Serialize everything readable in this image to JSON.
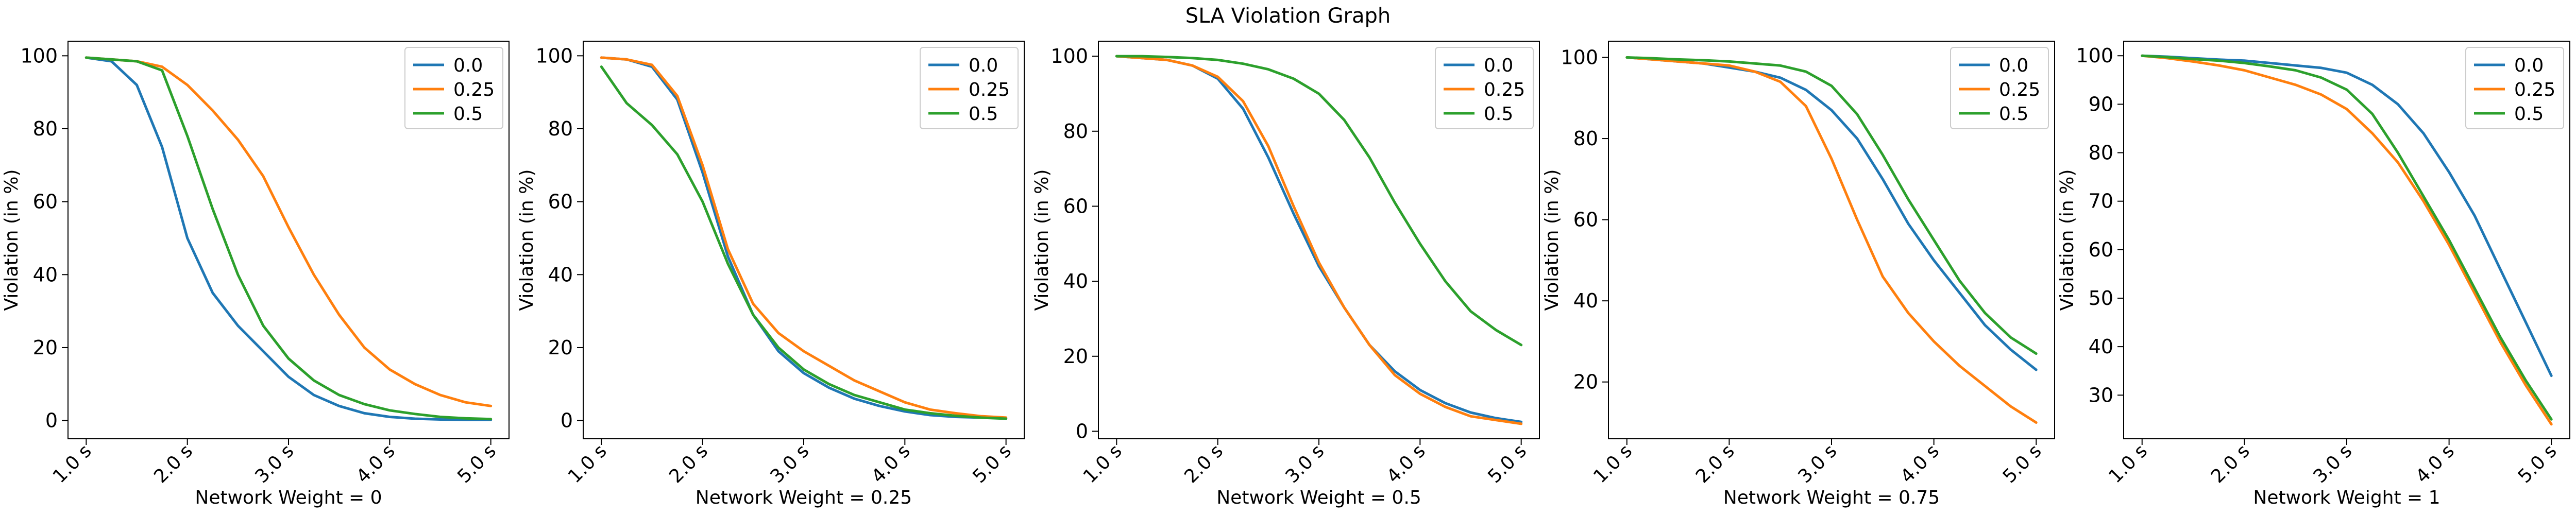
{
  "figure": {
    "title": "SLA Violation Graph"
  },
  "colors": {
    "0.0": "#1f77b4",
    "0.25": "#ff7f0e",
    "0.5": "#2ca02c"
  },
  "chart_data": [
    {
      "type": "line",
      "title": "",
      "xlabel": "Network Weight = 0",
      "ylabel": "Violation (in %)",
      "x": [
        1.0,
        1.25,
        1.5,
        1.75,
        2.0,
        2.25,
        2.5,
        2.75,
        3.0,
        3.25,
        3.5,
        3.75,
        4.0,
        4.25,
        4.5,
        4.75,
        5.0
      ],
      "xticks": [
        "1.0 s",
        "2.0 s",
        "3.0 s",
        "4.0 s",
        "5.0 s"
      ],
      "ylim": [
        -5,
        104
      ],
      "yticks": [
        0,
        20,
        40,
        60,
        80,
        100
      ],
      "legend": "top-right",
      "grid": false,
      "series": [
        {
          "name": "0.0",
          "values": [
            99.5,
            98.5,
            92,
            75,
            50,
            35,
            26,
            19,
            12,
            7,
            4,
            2,
            1,
            0.5,
            0.3,
            0.2,
            0.2
          ]
        },
        {
          "name": "0.25",
          "values": [
            99.5,
            99,
            98.5,
            97,
            92,
            85,
            77,
            67,
            53,
            40,
            29,
            20,
            14,
            10,
            7,
            5,
            4
          ]
        },
        {
          "name": "0.5",
          "values": [
            99.5,
            99,
            98.5,
            96,
            78,
            58,
            40,
            26,
            17,
            11,
            7,
            4.5,
            2.8,
            1.8,
            1.0,
            0.6,
            0.4
          ]
        }
      ]
    },
    {
      "type": "line",
      "title": "",
      "xlabel": "Network Weight = 0.25",
      "ylabel": "Violation (in %)",
      "x": [
        1.0,
        1.25,
        1.5,
        1.75,
        2.0,
        2.25,
        2.5,
        2.75,
        3.0,
        3.25,
        3.5,
        3.75,
        4.0,
        4.25,
        4.5,
        4.75,
        5.0
      ],
      "xticks": [
        "1.0 s",
        "2.0 s",
        "3.0 s",
        "4.0 s",
        "5.0 s"
      ],
      "ylim": [
        -5,
        104
      ],
      "yticks": [
        0,
        20,
        40,
        60,
        80,
        100
      ],
      "legend": "top-right",
      "grid": false,
      "series": [
        {
          "name": "0.0",
          "values": [
            99.5,
            99,
            97,
            88,
            68,
            45,
            29,
            19,
            13,
            9,
            6,
            4,
            2.5,
            1.5,
            1.0,
            0.8,
            0.6
          ]
        },
        {
          "name": "0.25",
          "values": [
            99.5,
            99,
            97.5,
            89,
            70,
            47,
            32,
            24,
            19,
            15,
            11,
            8,
            5,
            3,
            2,
            1.2,
            0.8
          ]
        },
        {
          "name": "0.5",
          "values": [
            97,
            87,
            81,
            73,
            60,
            43,
            29,
            20,
            14,
            10,
            7,
            5,
            3,
            2,
            1.3,
            0.8,
            0.5
          ]
        }
      ]
    },
    {
      "type": "line",
      "title": "",
      "xlabel": "Network Weight = 0.5",
      "ylabel": "Violation (in %)",
      "x": [
        1.0,
        1.25,
        1.5,
        1.75,
        2.0,
        2.25,
        2.5,
        2.75,
        3.0,
        3.25,
        3.5,
        3.75,
        4.0,
        4.25,
        4.5,
        4.75,
        5.0
      ],
      "xticks": [
        "1.0 s",
        "2.0 s",
        "3.0 s",
        "4.0 s",
        "5.0 s"
      ],
      "ylim": [
        -2,
        104
      ],
      "yticks": [
        0,
        20,
        40,
        60,
        80,
        100
      ],
      "legend": "top-right",
      "grid": false,
      "series": [
        {
          "name": "0.0",
          "values": [
            100,
            99.5,
            99,
            97.5,
            94,
            86,
            73,
            58,
            44,
            33,
            23,
            16,
            11,
            7.5,
            5,
            3.5,
            2.5
          ]
        },
        {
          "name": "0.25",
          "values": [
            100,
            99.5,
            99,
            97.5,
            94.5,
            88,
            76,
            60,
            45,
            33,
            23,
            15,
            10,
            6.5,
            4,
            3,
            2
          ]
        },
        {
          "name": "0.5",
          "values": [
            100,
            100,
            99.8,
            99.5,
            99,
            98,
            96.5,
            94,
            90,
            83,
            73,
            61,
            50,
            40,
            32,
            27,
            23
          ]
        }
      ]
    },
    {
      "type": "line",
      "title": "",
      "xlabel": "Network Weight = 0.75",
      "ylabel": "Violation (in %)",
      "x": [
        1.0,
        1.25,
        1.5,
        1.75,
        2.0,
        2.25,
        2.5,
        2.75,
        3.0,
        3.25,
        3.5,
        3.75,
        4.0,
        4.25,
        4.5,
        4.75,
        5.0
      ],
      "xticks": [
        "1.0 s",
        "2.0 s",
        "3.0 s",
        "4.0 s",
        "5.0 s"
      ],
      "ylim": [
        6,
        104
      ],
      "yticks": [
        20,
        40,
        60,
        80,
        100
      ],
      "legend": "top-right",
      "grid": false,
      "series": [
        {
          "name": "0.0",
          "values": [
            100,
            99.5,
            99,
            98.5,
            97.5,
            96.5,
            95,
            92,
            87,
            80,
            70,
            59,
            50,
            42,
            34,
            28,
            23
          ]
        },
        {
          "name": "0.25",
          "values": [
            100,
            99.5,
            99,
            98.5,
            98,
            96.5,
            94,
            88,
            75,
            60,
            46,
            37,
            30,
            24,
            19,
            14,
            10
          ]
        },
        {
          "name": "0.5",
          "values": [
            100,
            99.8,
            99.5,
            99.3,
            99,
            98.5,
            98,
            96.5,
            93,
            86,
            76,
            65,
            55,
            45,
            37,
            31,
            27
          ]
        }
      ]
    },
    {
      "type": "line",
      "title": "",
      "xlabel": "Network Weight = 1",
      "ylabel": "Violation (in %)",
      "x": [
        1.0,
        1.25,
        1.5,
        1.75,
        2.0,
        2.25,
        2.5,
        2.75,
        3.0,
        3.25,
        3.5,
        3.75,
        4.0,
        4.25,
        4.5,
        4.75,
        5.0
      ],
      "xticks": [
        "1.0 s",
        "2.0 s",
        "3.0 s",
        "4.0 s",
        "5.0 s"
      ],
      "ylim": [
        21,
        103
      ],
      "yticks": [
        30,
        40,
        50,
        60,
        70,
        80,
        90,
        100
      ],
      "legend": "top-right",
      "grid": false,
      "series": [
        {
          "name": "0.0",
          "values": [
            100,
            99.8,
            99.5,
            99.2,
            99,
            98.5,
            98,
            97.5,
            96.5,
            94,
            90,
            84,
            76,
            67,
            56,
            45,
            34
          ]
        },
        {
          "name": "0.25",
          "values": [
            100,
            99.5,
            98.8,
            98,
            97,
            95.5,
            94,
            92,
            89,
            84,
            78,
            70,
            61,
            51,
            41,
            32,
            24
          ]
        },
        {
          "name": "0.5",
          "values": [
            100,
            99.7,
            99.3,
            99,
            98.5,
            97.8,
            97,
            95.5,
            93,
            88,
            80,
            71,
            62,
            52,
            42,
            33,
            25
          ]
        }
      ]
    }
  ]
}
